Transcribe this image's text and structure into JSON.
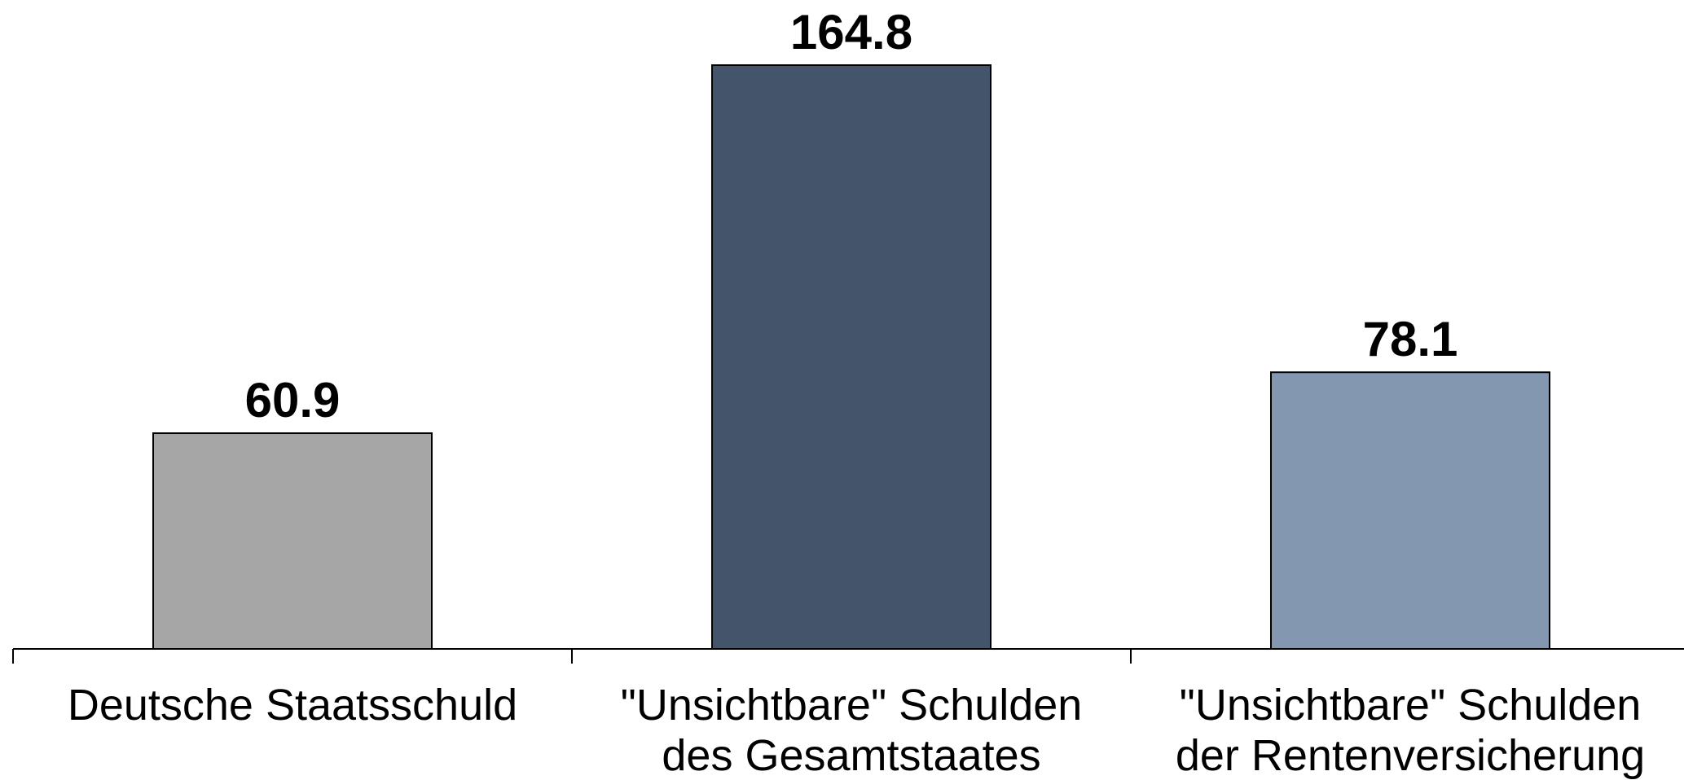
{
  "chart_data": {
    "type": "bar",
    "categories": [
      [
        "Deutsche Staatsschuld"
      ],
      [
        "\"Unsichtbare\" Schulden",
        "des Gesamtstaates"
      ],
      [
        "\"Unsichtbare\" Schulden",
        "der Rentenversicherung"
      ]
    ],
    "values": [
      60.9,
      164.8,
      78.1
    ],
    "value_labels": [
      "60.9",
      "164.8",
      "78.1"
    ],
    "colors": [
      "#A6A6A6",
      "#44546A",
      "#8497B0"
    ],
    "edge_color": "#000000",
    "title": "",
    "xlabel": "",
    "ylabel": "",
    "ylim": [
      0,
      164.8
    ],
    "grid": false,
    "legend": "none"
  }
}
